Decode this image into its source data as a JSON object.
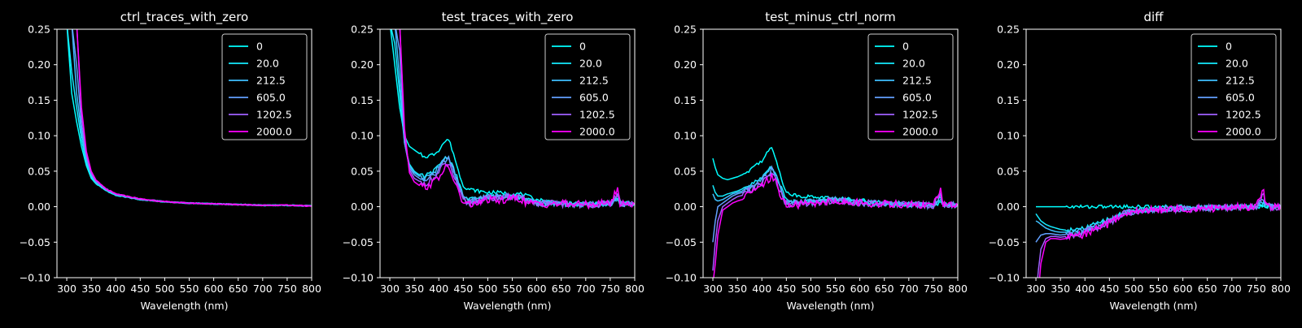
{
  "figure": {
    "background": "#000000",
    "foreground": "#ffffff"
  },
  "legend": {
    "labels": [
      "0",
      "20.0",
      "212.5",
      "605.0",
      "1202.5",
      "2000.0"
    ],
    "colors": [
      "#00ffff",
      "#14ebff",
      "#3fbfff",
      "#62a0ff",
      "#a060ff",
      "#ff00ff"
    ],
    "placement": "top-right"
  },
  "chart_data": [
    {
      "type": "line",
      "title": "ctrl_traces_with_zero",
      "xlabel": "Wavelength (nm)",
      "ylabel": "",
      "xlim": [
        280,
        800
      ],
      "ylim": [
        -0.1,
        0.25
      ],
      "xticks": [
        "300",
        "350",
        "400",
        "450",
        "500",
        "550",
        "600",
        "650",
        "700",
        "750",
        "800"
      ],
      "yticks": [
        "−0.10",
        "−0.05",
        "0.00",
        "0.05",
        "0.10",
        "0.15",
        "0.20",
        "0.25"
      ],
      "grid": false,
      "legend_placement": "top-right",
      "x": [
        300,
        310,
        320,
        330,
        340,
        350,
        360,
        380,
        400,
        450,
        500,
        550,
        600,
        650,
        700,
        750,
        800
      ],
      "series": [
        {
          "name": "0",
          "values": [
            0.26,
            0.16,
            0.12,
            0.085,
            0.058,
            0.04,
            0.032,
            0.023,
            0.016,
            0.01,
            0.007,
            0.005,
            0.004,
            0.003,
            0.002,
            0.002,
            0.001
          ]
        },
        {
          "name": "20.0",
          "values": [
            0.26,
            0.19,
            0.14,
            0.095,
            0.062,
            0.042,
            0.033,
            0.023,
            0.016,
            0.01,
            0.007,
            0.005,
            0.004,
            0.003,
            0.002,
            0.002,
            0.001
          ]
        },
        {
          "name": "212.5",
          "values": [
            0.26,
            0.26,
            0.16,
            0.105,
            0.066,
            0.044,
            0.034,
            0.024,
            0.017,
            0.01,
            0.007,
            0.005,
            0.004,
            0.003,
            0.002,
            0.002,
            0.001
          ]
        },
        {
          "name": "605.0",
          "values": [
            0.26,
            0.26,
            0.2,
            0.115,
            0.07,
            0.046,
            0.035,
            0.024,
            0.017,
            0.01,
            0.007,
            0.005,
            0.004,
            0.003,
            0.002,
            0.002,
            0.001
          ]
        },
        {
          "name": "1202.5",
          "values": [
            0.26,
            0.26,
            0.26,
            0.13,
            0.074,
            0.048,
            0.036,
            0.025,
            0.018,
            0.011,
            0.007,
            0.005,
            0.004,
            0.003,
            0.002,
            0.002,
            0.001
          ]
        },
        {
          "name": "2000.0",
          "values": [
            0.26,
            0.26,
            0.26,
            0.14,
            0.078,
            0.05,
            0.037,
            0.025,
            0.018,
            0.011,
            0.007,
            0.005,
            0.004,
            0.003,
            0.002,
            0.002,
            0.001
          ]
        }
      ]
    },
    {
      "type": "line",
      "title": "test_traces_with_zero",
      "xlabel": "Wavelength (nm)",
      "ylabel": "",
      "xlim": [
        280,
        800
      ],
      "ylim": [
        -0.1,
        0.25
      ],
      "xticks": [
        "300",
        "350",
        "400",
        "450",
        "500",
        "550",
        "600",
        "650",
        "700",
        "750",
        "800"
      ],
      "yticks": [
        "−0.10",
        "−0.05",
        "0.00",
        "0.05",
        "0.10",
        "0.15",
        "0.20",
        "0.25"
      ],
      "grid": false,
      "legend_placement": "top-right",
      "x": [
        300,
        310,
        320,
        330,
        340,
        350,
        360,
        370,
        380,
        390,
        400,
        410,
        420,
        430,
        440,
        450,
        460,
        480,
        500,
        520,
        550,
        570,
        580,
        600,
        650,
        700,
        750,
        765,
        770,
        800
      ],
      "series": [
        {
          "name": "0",
          "values": [
            0.26,
            0.2,
            0.14,
            0.1,
            0.085,
            0.08,
            0.075,
            0.07,
            0.072,
            0.074,
            0.08,
            0.09,
            0.095,
            0.075,
            0.05,
            0.03,
            0.025,
            0.022,
            0.02,
            0.02,
            0.018,
            0.018,
            0.015,
            0.01,
            0.005,
            0.004,
            0.005,
            0.01,
            0.006,
            0.004
          ]
        },
        {
          "name": "20.0",
          "values": [
            0.26,
            0.23,
            0.16,
            0.09,
            0.06,
            0.05,
            0.045,
            0.042,
            0.046,
            0.05,
            0.058,
            0.068,
            0.07,
            0.055,
            0.035,
            0.015,
            0.01,
            0.012,
            0.015,
            0.015,
            0.015,
            0.012,
            0.01,
            0.006,
            0.004,
            0.003,
            0.004,
            0.012,
            0.005,
            0.003
          ]
        },
        {
          "name": "212.5",
          "values": [
            0.26,
            0.26,
            0.18,
            0.09,
            0.058,
            0.048,
            0.043,
            0.04,
            0.044,
            0.048,
            0.056,
            0.066,
            0.068,
            0.052,
            0.032,
            0.012,
            0.008,
            0.01,
            0.014,
            0.014,
            0.015,
            0.012,
            0.01,
            0.006,
            0.004,
            0.003,
            0.004,
            0.012,
            0.005,
            0.003
          ]
        },
        {
          "name": "605.0",
          "values": [
            0.26,
            0.26,
            0.22,
            0.09,
            0.055,
            0.045,
            0.04,
            0.037,
            0.04,
            0.045,
            0.053,
            0.063,
            0.066,
            0.05,
            0.03,
            0.01,
            0.006,
            0.01,
            0.013,
            0.012,
            0.015,
            0.012,
            0.01,
            0.005,
            0.004,
            0.003,
            0.004,
            0.015,
            0.005,
            0.003
          ]
        },
        {
          "name": "1202.5",
          "values": [
            0.26,
            0.26,
            0.26,
            0.1,
            0.052,
            0.04,
            0.036,
            0.033,
            0.036,
            0.04,
            0.048,
            0.058,
            0.06,
            0.045,
            0.025,
            0.008,
            0.005,
            0.008,
            0.012,
            0.012,
            0.014,
            0.011,
            0.009,
            0.005,
            0.004,
            0.003,
            0.004,
            0.02,
            0.005,
            0.003
          ]
        },
        {
          "name": "2000.0",
          "values": [
            0.26,
            0.26,
            0.26,
            0.11,
            0.048,
            0.035,
            0.03,
            0.028,
            0.03,
            0.035,
            0.042,
            0.052,
            0.055,
            0.04,
            0.02,
            0.005,
            0.003,
            0.005,
            0.01,
            0.008,
            0.012,
            0.01,
            0.005,
            0.004,
            0.004,
            0.003,
            0.005,
            0.025,
            0.005,
            0.003
          ]
        }
      ]
    },
    {
      "type": "line",
      "title": "test_minus_ctrl_norm",
      "xlabel": "Wavelength (nm)",
      "ylabel": "",
      "xlim": [
        280,
        800
      ],
      "ylim": [
        -0.1,
        0.25
      ],
      "xticks": [
        "300",
        "350",
        "400",
        "450",
        "500",
        "550",
        "600",
        "650",
        "700",
        "750",
        "800"
      ],
      "yticks": [
        "−0.10",
        "−0.05",
        "0.00",
        "0.05",
        "0.10",
        "0.15",
        "0.20",
        "0.25"
      ],
      "grid": false,
      "legend_placement": "top-right",
      "x": [
        300,
        305,
        310,
        320,
        330,
        340,
        350,
        360,
        370,
        380,
        390,
        400,
        410,
        420,
        430,
        440,
        450,
        460,
        480,
        500,
        550,
        600,
        650,
        700,
        750,
        765,
        770,
        800
      ],
      "series": [
        {
          "name": "0",
          "values": [
            0.068,
            0.055,
            0.045,
            0.04,
            0.038,
            0.04,
            0.042,
            0.045,
            0.048,
            0.055,
            0.06,
            0.065,
            0.075,
            0.083,
            0.065,
            0.04,
            0.02,
            0.017,
            0.015,
            0.014,
            0.012,
            0.01,
            0.005,
            0.003,
            0.002,
            0.005,
            0.002,
            0.002
          ]
        },
        {
          "name": "20.0",
          "values": [
            0.03,
            0.02,
            0.015,
            0.015,
            0.018,
            0.02,
            0.022,
            0.025,
            0.028,
            0.032,
            0.036,
            0.04,
            0.05,
            0.057,
            0.045,
            0.025,
            0.01,
            0.008,
            0.008,
            0.008,
            0.01,
            0.006,
            0.004,
            0.003,
            0.002,
            0.01,
            0.002,
            0.002
          ]
        },
        {
          "name": "212.5",
          "values": [
            0.018,
            0.01,
            0.008,
            0.01,
            0.014,
            0.018,
            0.02,
            0.022,
            0.026,
            0.03,
            0.034,
            0.038,
            0.048,
            0.055,
            0.043,
            0.022,
            0.008,
            0.006,
            0.007,
            0.007,
            0.01,
            0.006,
            0.004,
            0.003,
            0.002,
            0.012,
            0.002,
            0.002
          ]
        },
        {
          "name": "605.0",
          "values": [
            -0.05,
            -0.02,
            0.0,
            0.005,
            0.01,
            0.015,
            0.018,
            0.02,
            0.024,
            0.028,
            0.032,
            0.036,
            0.045,
            0.052,
            0.04,
            0.02,
            0.006,
            0.005,
            0.006,
            0.006,
            0.01,
            0.005,
            0.004,
            0.003,
            0.002,
            0.015,
            0.002,
            0.002
          ]
        },
        {
          "name": "1202.5",
          "values": [
            -0.09,
            -0.05,
            -0.02,
            0.0,
            0.005,
            0.01,
            0.014,
            0.016,
            0.02,
            0.024,
            0.028,
            0.032,
            0.04,
            0.047,
            0.036,
            0.017,
            0.004,
            0.003,
            0.005,
            0.005,
            0.009,
            0.005,
            0.004,
            0.003,
            0.002,
            0.02,
            0.002,
            0.002
          ]
        },
        {
          "name": "2000.0",
          "values": [
            -0.11,
            -0.08,
            -0.04,
            -0.005,
            0.0,
            0.005,
            0.008,
            0.01,
            0.015,
            0.02,
            0.024,
            0.028,
            0.036,
            0.043,
            0.032,
            0.014,
            0.002,
            0.001,
            0.003,
            0.004,
            0.008,
            0.005,
            0.004,
            0.003,
            0.002,
            0.025,
            0.002,
            0.002
          ]
        }
      ]
    },
    {
      "type": "line",
      "title": "diff",
      "xlabel": "Wavelength (nm)",
      "ylabel": "",
      "xlim": [
        280,
        800
      ],
      "ylim": [
        -0.1,
        0.25
      ],
      "xticks": [
        "300",
        "350",
        "400",
        "450",
        "500",
        "550",
        "600",
        "650",
        "700",
        "750",
        "800"
      ],
      "yticks": [
        "−0.10",
        "−0.05",
        "0.00",
        "0.05",
        "0.10",
        "0.15",
        "0.20",
        "0.25"
      ],
      "grid": false,
      "legend_placement": "top-right",
      "x": [
        300,
        305,
        310,
        320,
        330,
        340,
        350,
        360,
        380,
        400,
        420,
        440,
        460,
        480,
        500,
        550,
        600,
        650,
        700,
        750,
        765,
        770,
        800
      ],
      "series": [
        {
          "name": "0",
          "values": [
            0.0,
            0.0,
            0.0,
            0.0,
            0.0,
            0.0,
            0.0,
            0.0,
            0.0,
            0.0,
            0.0,
            0.0,
            0.0,
            0.0,
            0.0,
            0.0,
            0.0,
            0.0,
            0.0,
            0.0,
            0.0,
            0.0,
            0.0
          ]
        },
        {
          "name": "20.0",
          "values": [
            -0.01,
            -0.015,
            -0.02,
            -0.025,
            -0.028,
            -0.03,
            -0.032,
            -0.033,
            -0.033,
            -0.03,
            -0.025,
            -0.02,
            -0.015,
            -0.008,
            -0.006,
            -0.004,
            -0.003,
            -0.002,
            -0.001,
            0.0,
            0.005,
            0.0,
            0.0
          ]
        },
        {
          "name": "212.5",
          "values": [
            -0.02,
            -0.022,
            -0.025,
            -0.03,
            -0.033,
            -0.035,
            -0.036,
            -0.036,
            -0.035,
            -0.032,
            -0.027,
            -0.022,
            -0.016,
            -0.009,
            -0.006,
            -0.004,
            -0.003,
            -0.002,
            -0.001,
            0.0,
            0.008,
            0.0,
            0.0
          ]
        },
        {
          "name": "605.0",
          "values": [
            -0.05,
            -0.045,
            -0.04,
            -0.038,
            -0.038,
            -0.039,
            -0.04,
            -0.039,
            -0.038,
            -0.034,
            -0.029,
            -0.023,
            -0.017,
            -0.01,
            -0.007,
            -0.004,
            -0.003,
            -0.002,
            -0.001,
            0.0,
            0.012,
            0.0,
            0.0
          ]
        },
        {
          "name": "1202.5",
          "values": [
            -0.13,
            -0.09,
            -0.06,
            -0.045,
            -0.042,
            -0.042,
            -0.043,
            -0.042,
            -0.04,
            -0.036,
            -0.031,
            -0.025,
            -0.018,
            -0.01,
            -0.007,
            -0.004,
            -0.003,
            -0.002,
            -0.001,
            0.0,
            0.018,
            0.0,
            0.0
          ]
        },
        {
          "name": "2000.0",
          "values": [
            -0.15,
            -0.12,
            -0.08,
            -0.05,
            -0.045,
            -0.045,
            -0.046,
            -0.045,
            -0.043,
            -0.038,
            -0.033,
            -0.027,
            -0.019,
            -0.011,
            -0.007,
            -0.004,
            -0.003,
            -0.002,
            -0.001,
            0.0,
            0.022,
            0.0,
            0.0
          ]
        }
      ]
    }
  ]
}
